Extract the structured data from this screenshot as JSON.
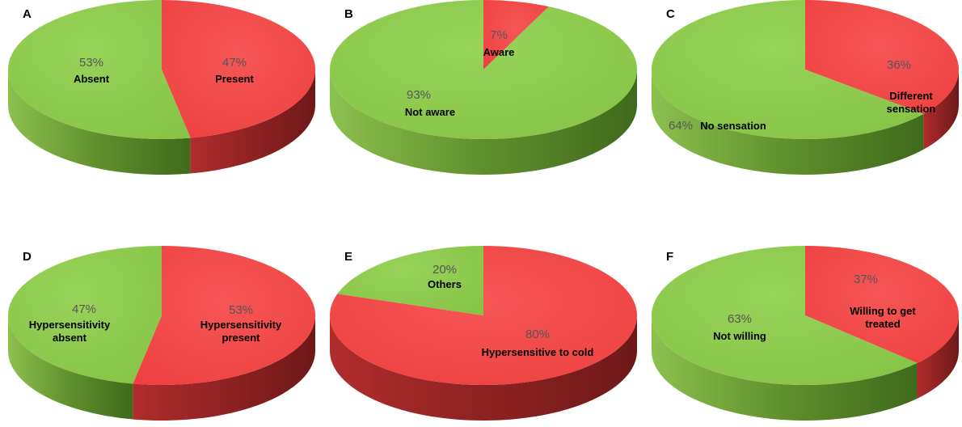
{
  "colors": {
    "green_top": "#8fcb4f",
    "green_side": "#5f8f2c",
    "red_top": "#f24a4a",
    "red_side": "#8a1f1f"
  },
  "chart_data": [
    {
      "type": "pie",
      "panel": "A",
      "slices": [
        {
          "label": "Present",
          "value": 47,
          "value_label": "47%",
          "color": "red"
        },
        {
          "label": "Absent",
          "value": 53,
          "value_label": "53%",
          "color": "green"
        }
      ]
    },
    {
      "type": "pie",
      "panel": "B",
      "slices": [
        {
          "label": "Aware",
          "value": 7,
          "value_label": "7%",
          "color": "red"
        },
        {
          "label": "Not aware",
          "value": 93,
          "value_label": "93%",
          "color": "green"
        }
      ]
    },
    {
      "type": "pie",
      "panel": "C",
      "slices": [
        {
          "label": "Different sensation",
          "value": 36,
          "value_label": "36%",
          "color": "red"
        },
        {
          "label": "No sensation",
          "value": 64,
          "value_label": "64%",
          "color": "green"
        }
      ]
    },
    {
      "type": "pie",
      "panel": "D",
      "slices": [
        {
          "label": "Hypersensitivity present",
          "value": 53,
          "value_label": "53%",
          "color": "red"
        },
        {
          "label": "Hypersensitivity absent",
          "value": 47,
          "value_label": "47%",
          "color": "green"
        }
      ]
    },
    {
      "type": "pie",
      "panel": "E",
      "slices": [
        {
          "label": "Hypersensitive to cold",
          "value": 80,
          "value_label": "80%",
          "color": "red"
        },
        {
          "label": "Others",
          "value": 20,
          "value_label": "20%",
          "color": "green"
        }
      ]
    },
    {
      "type": "pie",
      "panel": "F",
      "slices": [
        {
          "label": "Willing to get treated",
          "value": 37,
          "value_label": "37%",
          "color": "red"
        },
        {
          "label": "Not willing",
          "value": 63,
          "value_label": "63%",
          "color": "green"
        }
      ]
    }
  ]
}
